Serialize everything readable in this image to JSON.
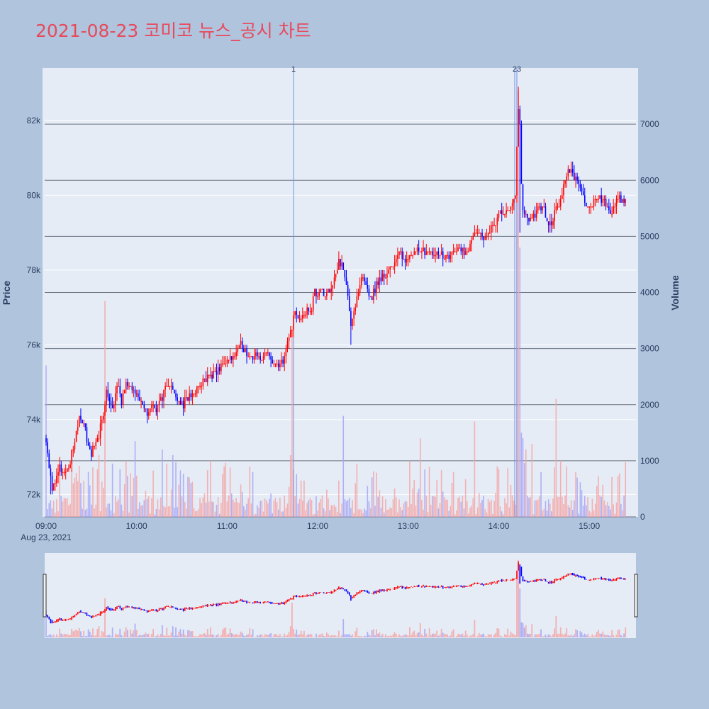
{
  "chart_data": {
    "type": "candlestick",
    "title": "2021-08-23 코미코 뉴스_공시 차트",
    "date_label": "Aug 23, 2021",
    "y_label": "Price",
    "y2_label": "Volume",
    "x_ticks": [
      "09:00",
      "10:00",
      "11:00",
      "12:00",
      "13:00",
      "14:00",
      "15:00"
    ],
    "y_ticks": [
      72000,
      74000,
      76000,
      78000,
      80000,
      82000
    ],
    "y_tick_labels": [
      "72k",
      "74k",
      "76k",
      "78k",
      "80k",
      "82k"
    ],
    "y_range": [
      71400,
      83400
    ],
    "y2_ticks": [
      0,
      1000,
      2000,
      3000,
      4000,
      5000,
      6000,
      7000
    ],
    "y2_tick_labels": [
      "0",
      "1000",
      "2000",
      "3000",
      "4000",
      "5000",
      "6000",
      "7000"
    ],
    "y2_range": [
      0,
      8000
    ],
    "x_range_minutes": [
      0,
      390
    ],
    "news_markers": [
      {
        "minute": 164,
        "label": "1"
      },
      {
        "minute": 312,
        "label": "23"
      }
    ],
    "price_path": [
      [
        0,
        73500
      ],
      [
        2,
        72800
      ],
      [
        4,
        72100
      ],
      [
        6,
        72400
      ],
      [
        9,
        72700
      ],
      [
        12,
        72500
      ],
      [
        15,
        72800
      ],
      [
        18,
        73200
      ],
      [
        20,
        73600
      ],
      [
        22,
        74100
      ],
      [
        24,
        74000
      ],
      [
        26,
        73700
      ],
      [
        28,
        73300
      ],
      [
        30,
        73100
      ],
      [
        33,
        73300
      ],
      [
        36,
        73800
      ],
      [
        38,
        74200
      ],
      [
        40,
        74800
      ],
      [
        42,
        74500
      ],
      [
        44,
        74200
      ],
      [
        46,
        74700
      ],
      [
        48,
        74900
      ],
      [
        50,
        74500
      ],
      [
        53,
        74900
      ],
      [
        56,
        75000
      ],
      [
        58,
        74900
      ],
      [
        60,
        74700
      ],
      [
        62,
        74500
      ],
      [
        64,
        74300
      ],
      [
        67,
        74200
      ],
      [
        70,
        74400
      ],
      [
        73,
        74300
      ],
      [
        76,
        74500
      ],
      [
        79,
        74900
      ],
      [
        82,
        75000
      ],
      [
        85,
        74700
      ],
      [
        88,
        74500
      ],
      [
        91,
        74400
      ],
      [
        94,
        74600
      ],
      [
        97,
        74700
      ],
      [
        100,
        74800
      ],
      [
        103,
        75000
      ],
      [
        106,
        75100
      ],
      [
        109,
        75200
      ],
      [
        112,
        75200
      ],
      [
        115,
        75400
      ],
      [
        118,
        75500
      ],
      [
        121,
        75600
      ],
      [
        124,
        75700
      ],
      [
        127,
        75900
      ],
      [
        130,
        76000
      ],
      [
        133,
        75800
      ],
      [
        136,
        75700
      ],
      [
        139,
        75700
      ],
      [
        142,
        75600
      ],
      [
        145,
        75800
      ],
      [
        148,
        75700
      ],
      [
        151,
        75500
      ],
      [
        154,
        75400
      ],
      [
        157,
        75600
      ],
      [
        159,
        75800
      ],
      [
        161,
        76200
      ],
      [
        163,
        76500
      ],
      [
        165,
        76900
      ],
      [
        167,
        76700
      ],
      [
        170,
        76700
      ],
      [
        173,
        76900
      ],
      [
        176,
        77000
      ],
      [
        178,
        77500
      ],
      [
        180,
        77300
      ],
      [
        182,
        77600
      ],
      [
        184,
        77300
      ],
      [
        186,
        77400
      ],
      [
        188,
        77500
      ],
      [
        190,
        77700
      ],
      [
        192,
        77900
      ],
      [
        194,
        78300
      ],
      [
        196,
        78100
      ],
      [
        198,
        77800
      ],
      [
        200,
        77300
      ],
      [
        202,
        76600
      ],
      [
        204,
        76900
      ],
      [
        206,
        77200
      ],
      [
        208,
        77500
      ],
      [
        210,
        77800
      ],
      [
        212,
        77600
      ],
      [
        214,
        77400
      ],
      [
        216,
        77300
      ],
      [
        218,
        77500
      ],
      [
        220,
        77700
      ],
      [
        223,
        77800
      ],
      [
        226,
        77900
      ],
      [
        229,
        78100
      ],
      [
        232,
        78300
      ],
      [
        235,
        78400
      ],
      [
        238,
        78300
      ],
      [
        241,
        78400
      ],
      [
        244,
        78500
      ],
      [
        247,
        78600
      ],
      [
        250,
        78500
      ],
      [
        253,
        78600
      ],
      [
        256,
        78500
      ],
      [
        259,
        78400
      ],
      [
        262,
        78400
      ],
      [
        265,
        78300
      ],
      [
        268,
        78400
      ],
      [
        271,
        78500
      ],
      [
        274,
        78600
      ],
      [
        277,
        78500
      ],
      [
        280,
        78600
      ],
      [
        283,
        78800
      ],
      [
        286,
        79000
      ],
      [
        289,
        78900
      ],
      [
        292,
        78900
      ],
      [
        295,
        79100
      ],
      [
        298,
        79300
      ],
      [
        301,
        79600
      ],
      [
        303,
        79400
      ],
      [
        305,
        79500
      ],
      [
        307,
        79600
      ],
      [
        309,
        79800
      ],
      [
        311,
        80100
      ],
      [
        312,
        81300
      ],
      [
        313,
        82200
      ],
      [
        314,
        81800
      ],
      [
        315,
        80400
      ],
      [
        316,
        79500
      ],
      [
        318,
        79400
      ],
      [
        320,
        79300
      ],
      [
        322,
        79300
      ],
      [
        324,
        79500
      ],
      [
        326,
        79700
      ],
      [
        328,
        79700
      ],
      [
        330,
        79600
      ],
      [
        332,
        79300
      ],
      [
        334,
        79200
      ],
      [
        336,
        79400
      ],
      [
        338,
        79600
      ],
      [
        340,
        79700
      ],
      [
        342,
        80000
      ],
      [
        344,
        80500
      ],
      [
        346,
        80600
      ],
      [
        348,
        80600
      ],
      [
        350,
        80500
      ],
      [
        352,
        80400
      ],
      [
        354,
        80200
      ],
      [
        356,
        80000
      ],
      [
        358,
        79800
      ],
      [
        360,
        79700
      ],
      [
        362,
        79800
      ],
      [
        364,
        79900
      ],
      [
        366,
        79900
      ],
      [
        368,
        79800
      ],
      [
        370,
        79800
      ],
      [
        372,
        79700
      ],
      [
        374,
        79600
      ],
      [
        376,
        79600
      ],
      [
        378,
        79800
      ],
      [
        380,
        79900
      ],
      [
        382,
        79800
      ],
      [
        384,
        79900
      ],
      [
        390,
        80300
      ]
    ]
  }
}
